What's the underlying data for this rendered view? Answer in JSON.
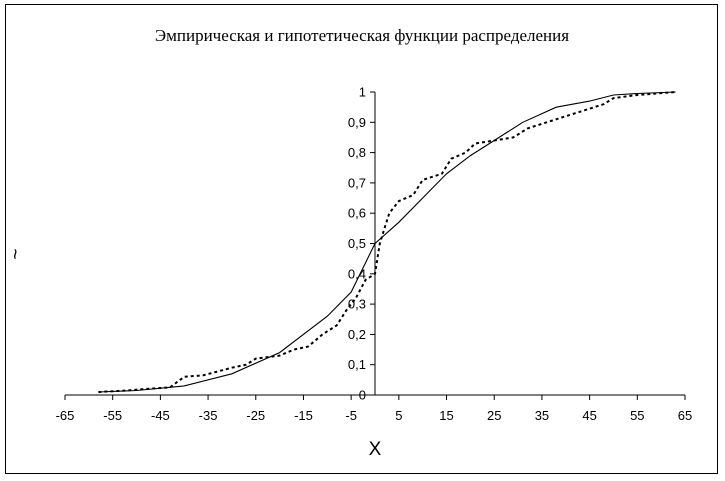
{
  "chart_data": {
    "type": "line",
    "title": "Эмпирическая и гипотетическая функции распределения",
    "xlabel": "X",
    "ylabel": "~",
    "xlim": [
      -65,
      65
    ],
    "ylim": [
      0,
      1
    ],
    "x_ticks": [
      "-65",
      "-55",
      "-45",
      "-35",
      "-25",
      "-15",
      "-5",
      "5",
      "15",
      "25",
      "35",
      "45",
      "55",
      "65"
    ],
    "y_ticks": [
      "0",
      "0,1",
      "0,2",
      "0,3",
      "0,4",
      "0,5",
      "0,6",
      "0,7",
      "0,8",
      "0,9",
      "1"
    ],
    "grid": false,
    "legend": "none",
    "series": [
      {
        "style": "solid",
        "color": "#000000",
        "x": [
          -58,
          -50,
          -40,
          -30,
          -20,
          -10,
          -5,
          0,
          5,
          10,
          15,
          20,
          25,
          31,
          38,
          45,
          50,
          55,
          63
        ],
        "y": [
          0.01,
          0.015,
          0.03,
          0.07,
          0.14,
          0.26,
          0.34,
          0.5,
          0.57,
          0.65,
          0.73,
          0.79,
          0.84,
          0.9,
          0.95,
          0.97,
          0.99,
          0.995,
          1.0
        ]
      },
      {
        "style": "dotted",
        "color": "#000000",
        "x": [
          -58,
          -52,
          -48,
          -43,
          -40,
          -36,
          -30,
          -27,
          -25,
          -20,
          -17,
          -14,
          -11,
          -8,
          -6,
          -4,
          -2,
          0,
          1,
          2,
          3,
          5,
          8,
          10,
          14,
          16,
          19,
          21,
          25,
          29,
          32,
          36,
          40,
          44,
          48,
          50,
          55,
          63
        ],
        "y": [
          0.01,
          0.015,
          0.02,
          0.025,
          0.06,
          0.065,
          0.09,
          0.1,
          0.12,
          0.13,
          0.15,
          0.16,
          0.2,
          0.23,
          0.28,
          0.32,
          0.38,
          0.4,
          0.5,
          0.55,
          0.6,
          0.64,
          0.66,
          0.71,
          0.73,
          0.78,
          0.8,
          0.83,
          0.84,
          0.85,
          0.88,
          0.9,
          0.92,
          0.94,
          0.96,
          0.98,
          0.99,
          1.0
        ]
      }
    ]
  }
}
